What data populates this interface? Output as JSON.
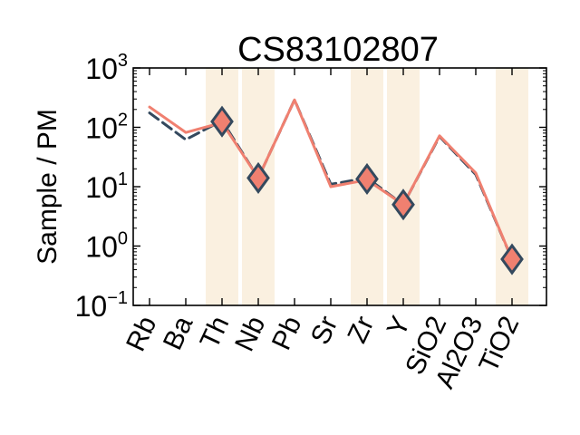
{
  "chart_data": {
    "type": "line",
    "title": "CS83102807",
    "ylabel": "Sample / PM",
    "xlabel": "",
    "yscale": "log",
    "ylim": [
      0.1,
      1000
    ],
    "yticks": [
      {
        "value": 0.1,
        "base": "10",
        "exp": "−1"
      },
      {
        "value": 1,
        "base": "10",
        "exp": "0"
      },
      {
        "value": 10,
        "base": "10",
        "exp": "1"
      },
      {
        "value": 100,
        "base": "10",
        "exp": "2"
      },
      {
        "value": 1000,
        "base": "10",
        "exp": "3"
      }
    ],
    "categories": [
      "Rb",
      "Ba",
      "Th",
      "Nb",
      "Pb",
      "Sr",
      "Zr",
      "Y",
      "SiO2",
      "Al2O3",
      "TiO2"
    ],
    "highlighted": [
      "Th",
      "Nb",
      "Zr",
      "Y",
      "TiO2"
    ],
    "series": [
      {
        "style": "dashed",
        "color": "#34495e",
        "values": [
          175,
          62,
          130,
          14,
          290,
          11,
          14,
          5,
          70,
          16,
          0.6
        ]
      },
      {
        "style": "solid",
        "color": "#f08070",
        "values": [
          220,
          82,
          120,
          14,
          290,
          10,
          13,
          5,
          72,
          17,
          0.6
        ]
      }
    ],
    "markers": {
      "color": "#f08070",
      "edge": "#34495e",
      "at": [
        {
          "category": "Th",
          "value": 125
        },
        {
          "category": "Nb",
          "value": 14
        },
        {
          "category": "Zr",
          "value": 13.5
        },
        {
          "category": "Y",
          "value": 5
        },
        {
          "category": "TiO2",
          "value": 0.6
        }
      ]
    },
    "band_color": "#faf0e0",
    "grid": false,
    "legend": "none"
  }
}
